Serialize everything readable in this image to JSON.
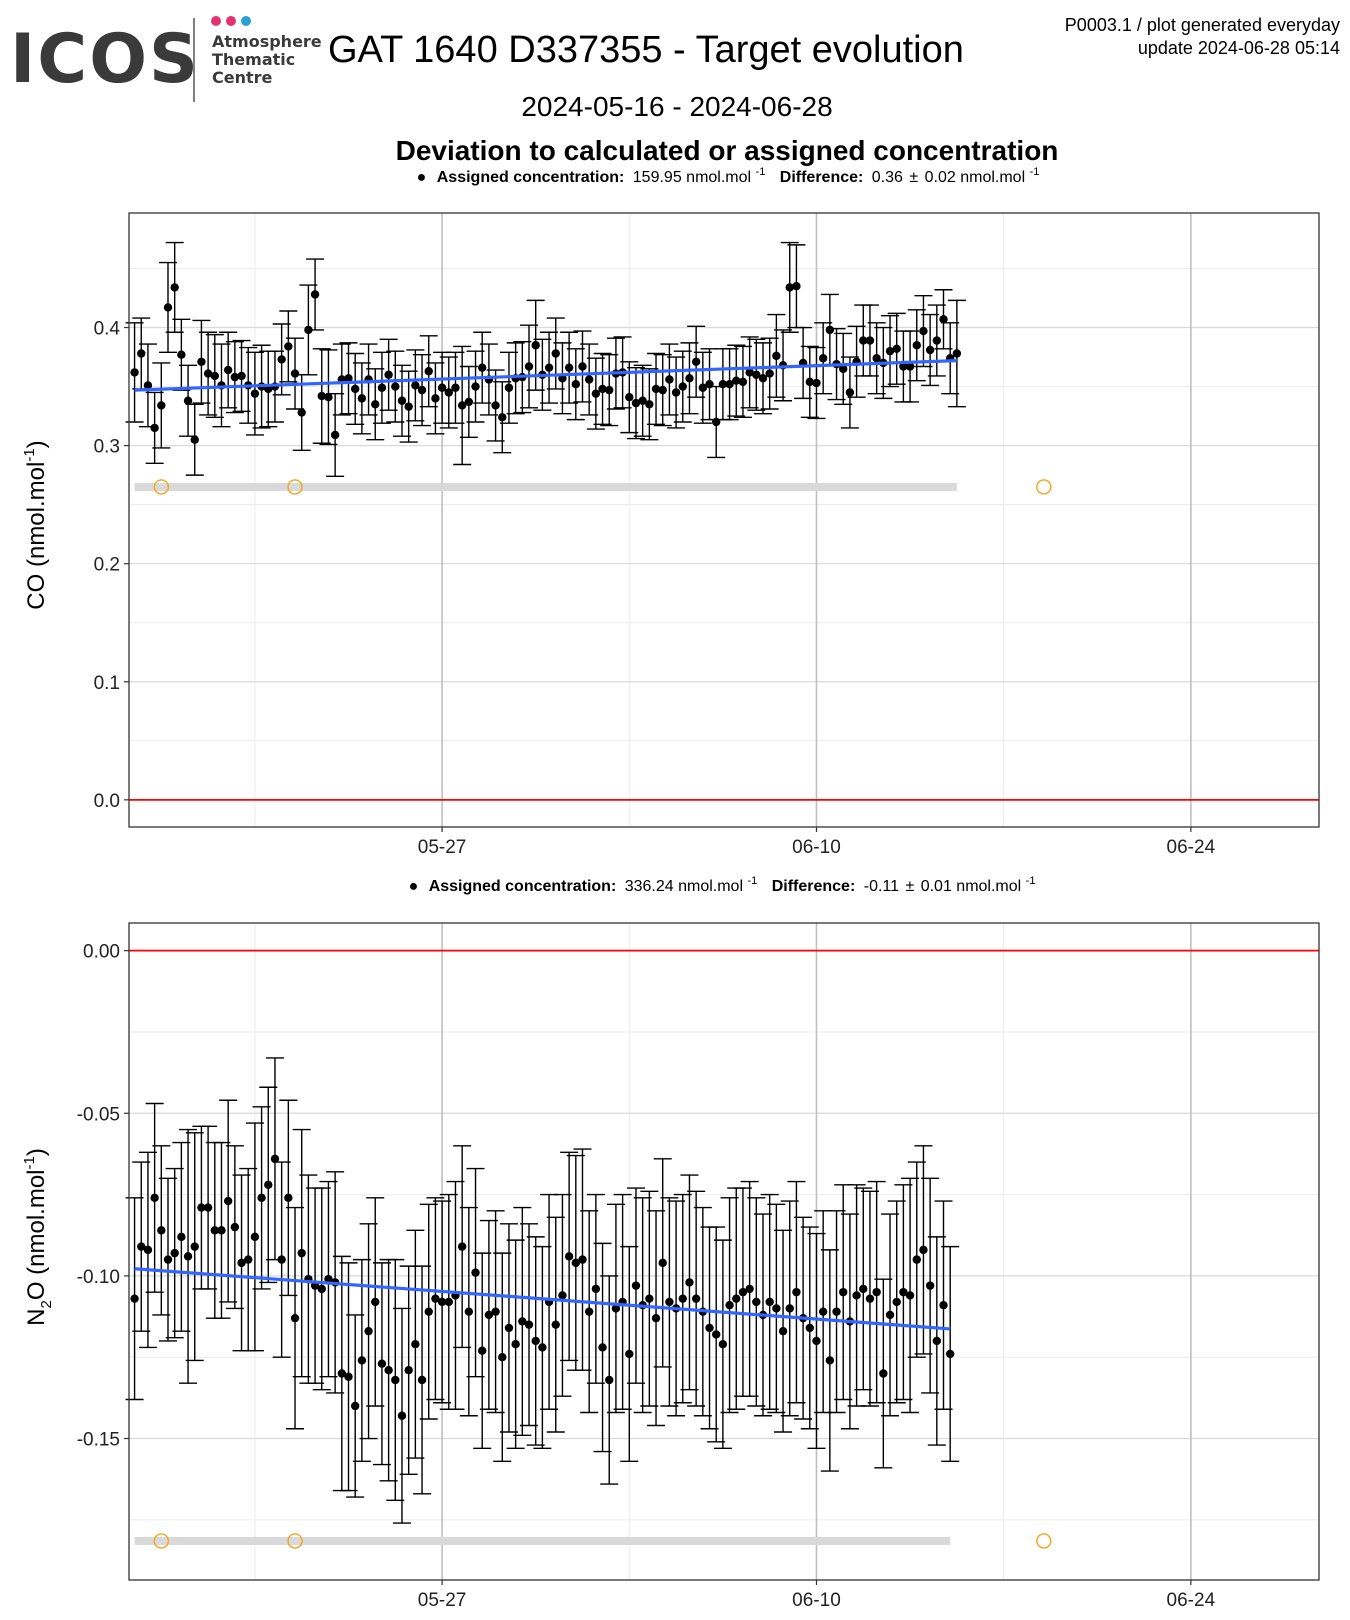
{
  "header": {
    "logo_text": "ICOS",
    "logo_sub": [
      "Atmosphere",
      "Thematic",
      "Centre"
    ],
    "title": "GAT 1640 D337355 - Target evolution",
    "date_range": "2024-05-16 - 2024-06-28",
    "meta_line1": "P0003.1 / plot generated everyday",
    "meta_line2": "update  2024-06-28 05:14",
    "section_title": "Deviation to calculated or assigned concentration",
    "dot_colors": [
      "#e2336f",
      "#e2336f",
      "#2a9fd6"
    ]
  },
  "chart_data": [
    {
      "type": "scatter",
      "panel": "co",
      "ylabel": "CO (nmol.mol",
      "ylabel_sup": "-1",
      "ylabel_end": ")",
      "subtitle": {
        "assigned_label": "Assigned concentration:",
        "assigned_value": "159.95 nmol.mol",
        "assigned_sup": "-1",
        "diff_label": "Difference:",
        "diff_value": "0.36",
        "diff_pm": "0.02 nmol.mol",
        "diff_sup": "-1"
      },
      "xlim": [
        "2024-05-15T07:00",
        "2024-06-28T19:00"
      ],
      "ylim": [
        -0.023,
        0.497
      ],
      "yticks": [
        0.0,
        0.1,
        0.2,
        0.3,
        0.4
      ],
      "ytick_labels": [
        "0.0",
        "0.1",
        "0.2",
        "0.3",
        "0.4"
      ],
      "xticks": [
        "2024-05-27",
        "2024-06-10",
        "2024-06-24"
      ],
      "xtick_labels": [
        "05-27",
        "06-10",
        "06-24"
      ],
      "minor_xticks": [
        "2024-05-20",
        "2024-06-03",
        "2024-06-17"
      ],
      "start": "2024-05-15T12:00",
      "step_hours": 6,
      "y": [
        0.362,
        0.378,
        0.351,
        0.315,
        0.334,
        0.417,
        0.434,
        0.377,
        0.338,
        0.305,
        0.371,
        0.361,
        0.359,
        0.351,
        0.364,
        0.358,
        0.359,
        0.351,
        0.344,
        0.35,
        0.348,
        0.35,
        0.373,
        0.384,
        0.361,
        0.328,
        0.398,
        0.428,
        0.342,
        0.341,
        0.309,
        0.356,
        0.357,
        0.348,
        0.34,
        0.356,
        0.335,
        0.349,
        0.36,
        0.35,
        0.338,
        0.333,
        0.351,
        0.347,
        0.363,
        0.34,
        0.349,
        0.345,
        0.349,
        0.334,
        0.337,
        0.35,
        0.366,
        0.356,
        0.334,
        0.324,
        0.349,
        0.357,
        0.358,
        0.367,
        0.385,
        0.36,
        0.366,
        0.378,
        0.357,
        0.366,
        0.352,
        0.367,
        0.356,
        0.344,
        0.348,
        0.347,
        0.361,
        0.362,
        0.341,
        0.336,
        0.338,
        0.335,
        0.348,
        0.347,
        0.356,
        0.345,
        0.35,
        0.357,
        0.371,
        0.349,
        0.352,
        0.32,
        0.352,
        0.352,
        0.355,
        0.354,
        0.362,
        0.36,
        0.357,
        0.361,
        0.376,
        0.368,
        0.434,
        0.435,
        0.37,
        0.354,
        0.353,
        0.374,
        0.398,
        0.369,
        0.365,
        0.345,
        0.371,
        0.389,
        0.389,
        0.374,
        0.37,
        0.38,
        0.382,
        0.367,
        0.367,
        0.385,
        0.397,
        0.381,
        0.389,
        0.407,
        0.374,
        0.378
      ],
      "err": [
        0.042,
        0.03,
        0.035,
        0.03,
        0.036,
        0.038,
        0.038,
        0.03,
        0.03,
        0.03,
        0.035,
        0.035,
        0.035,
        0.035,
        0.032,
        0.03,
        0.03,
        0.032,
        0.035,
        0.035,
        0.032,
        0.03,
        0.03,
        0.03,
        0.03,
        0.032,
        0.038,
        0.03,
        0.04,
        0.04,
        0.035,
        0.03,
        0.03,
        0.03,
        0.03,
        0.03,
        0.03,
        0.03,
        0.03,
        0.03,
        0.03,
        0.03,
        0.03,
        0.03,
        0.03,
        0.03,
        0.03,
        0.03,
        0.03,
        0.05,
        0.03,
        0.03,
        0.03,
        0.03,
        0.03,
        0.03,
        0.03,
        0.03,
        0.03,
        0.035,
        0.038,
        0.03,
        0.03,
        0.03,
        0.03,
        0.03,
        0.03,
        0.03,
        0.03,
        0.03,
        0.03,
        0.03,
        0.03,
        0.03,
        0.03,
        0.03,
        0.03,
        0.03,
        0.03,
        0.03,
        0.03,
        0.03,
        0.03,
        0.03,
        0.03,
        0.03,
        0.03,
        0.03,
        0.03,
        0.03,
        0.03,
        0.03,
        0.03,
        0.03,
        0.03,
        0.03,
        0.035,
        0.03,
        0.038,
        0.035,
        0.03,
        0.03,
        0.03,
        0.03,
        0.03,
        0.03,
        0.03,
        0.03,
        0.03,
        0.03,
        0.03,
        0.03,
        0.03,
        0.03,
        0.03,
        0.03,
        0.03,
        0.03,
        0.03,
        0.03,
        0.03,
        0.025,
        0.03,
        0.045
      ],
      "trend": {
        "y_start": 0.347,
        "y_end": 0.372,
        "color": "#3366ff"
      },
      "zero_line_color": "#ff0000",
      "flag_band_y": 0.265,
      "flag_markers": [
        "2024-05-16T12:00",
        "2024-05-21T12:00",
        "2024-06-18T12:00"
      ],
      "flag_color": "#f2a51a"
    },
    {
      "type": "scatter",
      "panel": "n2o",
      "ylabel": "N",
      "ylabel_sub": "2",
      "ylabel_mid": "O (nmol.mol",
      "ylabel_sup": "-1",
      "ylabel_end": ")",
      "subtitle": {
        "assigned_label": "Assigned concentration:",
        "assigned_value": "336.24 nmol.mol",
        "assigned_sup": "-1",
        "diff_label": "Difference:",
        "diff_value": "-0.11",
        "diff_pm": "0.01 nmol.mol",
        "diff_sup": "-1"
      },
      "xlim": [
        "2024-05-15T07:00",
        "2024-06-28T19:00"
      ],
      "ylim": [
        -0.1935,
        0.0085
      ],
      "yticks": [
        0.0,
        -0.05,
        -0.1,
        -0.15
      ],
      "ytick_labels": [
        "0.00",
        "-0.05",
        "-0.10",
        "-0.15"
      ],
      "xticks": [
        "2024-05-27",
        "2024-06-10",
        "2024-06-24"
      ],
      "xtick_labels": [
        "05-27",
        "06-10",
        "06-24"
      ],
      "minor_xticks": [
        "2024-05-20",
        "2024-06-03",
        "2024-06-17"
      ],
      "start": "2024-05-15T12:00",
      "step_hours": 6,
      "y": [
        -0.107,
        -0.091,
        -0.092,
        -0.076,
        -0.086,
        -0.095,
        -0.093,
        -0.088,
        -0.094,
        -0.091,
        -0.079,
        -0.079,
        -0.086,
        -0.086,
        -0.077,
        -0.085,
        -0.096,
        -0.095,
        -0.088,
        -0.076,
        -0.072,
        -0.064,
        -0.095,
        -0.076,
        -0.113,
        -0.093,
        -0.101,
        -0.103,
        -0.104,
        -0.101,
        -0.102,
        -0.13,
        -0.131,
        -0.14,
        -0.126,
        -0.117,
        -0.108,
        -0.127,
        -0.129,
        -0.132,
        -0.143,
        -0.129,
        -0.121,
        -0.132,
        -0.111,
        -0.107,
        -0.108,
        -0.108,
        -0.106,
        -0.091,
        -0.111,
        -0.099,
        -0.123,
        -0.112,
        -0.111,
        -0.125,
        -0.116,
        -0.121,
        -0.114,
        -0.115,
        -0.12,
        -0.122,
        -0.108,
        -0.115,
        -0.106,
        -0.094,
        -0.096,
        -0.095,
        -0.111,
        -0.104,
        -0.122,
        -0.132,
        -0.11,
        -0.108,
        -0.124,
        -0.103,
        -0.109,
        -0.107,
        -0.113,
        -0.096,
        -0.108,
        -0.11,
        -0.107,
        -0.102,
        -0.107,
        -0.111,
        -0.116,
        -0.118,
        -0.121,
        -0.109,
        -0.107,
        -0.105,
        -0.104,
        -0.108,
        -0.112,
        -0.108,
        -0.11,
        -0.117,
        -0.11,
        -0.105,
        -0.113,
        -0.116,
        -0.12,
        -0.111,
        -0.126,
        -0.111,
        -0.105,
        -0.114,
        -0.106,
        -0.104,
        -0.107,
        -0.105,
        -0.13,
        -0.112,
        -0.108,
        -0.105,
        -0.106,
        -0.095,
        -0.092,
        -0.103,
        -0.12,
        -0.109,
        -0.124
      ],
      "err": [
        0.031,
        0.026,
        0.03,
        0.029,
        0.026,
        0.025,
        0.026,
        0.029,
        0.039,
        0.035,
        0.025,
        0.025,
        0.027,
        0.027,
        0.031,
        0.025,
        0.027,
        0.028,
        0.035,
        0.028,
        0.03,
        0.031,
        0.03,
        0.03,
        0.034,
        0.038,
        0.032,
        0.03,
        0.031,
        0.03,
        0.034,
        0.036,
        0.035,
        0.028,
        0.031,
        0.033,
        0.032,
        0.031,
        0.034,
        0.037,
        0.033,
        0.032,
        0.035,
        0.035,
        0.033,
        0.031,
        0.031,
        0.033,
        0.035,
        0.031,
        0.032,
        0.032,
        0.03,
        0.029,
        0.031,
        0.032,
        0.032,
        0.032,
        0.035,
        0.031,
        0.032,
        0.031,
        0.033,
        0.033,
        0.031,
        0.032,
        0.033,
        0.034,
        0.031,
        0.029,
        0.032,
        0.032,
        0.032,
        0.033,
        0.033,
        0.03,
        0.033,
        0.033,
        0.033,
        0.032,
        0.032,
        0.033,
        0.032,
        0.033,
        0.033,
        0.032,
        0.031,
        0.033,
        0.032,
        0.033,
        0.034,
        0.032,
        0.033,
        0.032,
        0.031,
        0.033,
        0.032,
        0.031,
        0.033,
        0.034,
        0.031,
        0.031,
        0.033,
        0.031,
        0.034,
        0.031,
        0.033,
        0.033,
        0.034,
        0.031,
        0.033,
        0.034,
        0.029,
        0.031,
        0.031,
        0.033,
        0.036,
        0.03,
        0.032,
        0.033,
        0.032,
        0.032,
        0.033
      ],
      "trend": {
        "y_start": -0.0978,
        "y_end": -0.1163,
        "color": "#3366ff"
      },
      "zero_line_color": "#ff0000",
      "flag_band_y": -0.1815,
      "flag_markers": [
        "2024-05-16T12:00",
        "2024-05-21T12:00",
        "2024-06-18T12:00"
      ],
      "flag_color": "#f2a51a"
    }
  ]
}
